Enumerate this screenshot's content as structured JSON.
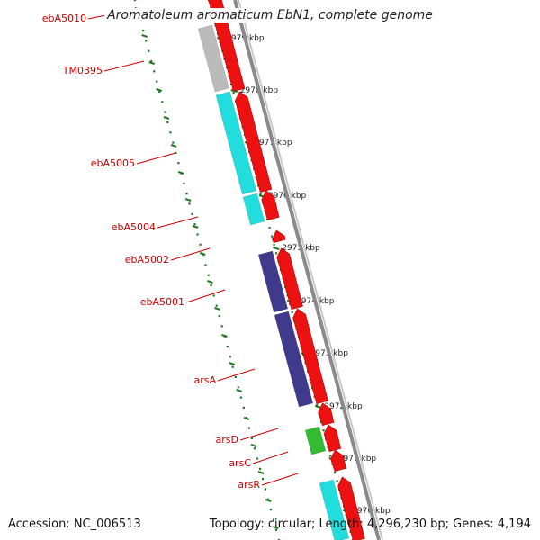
{
  "title": "Aromatoleum aromaticum EbN1, complete genome",
  "footer": {
    "accession": "Accession: NC_006513",
    "summary": "Topology: circular; Length: 4,296,230 bp; Genes: 4,194"
  },
  "scale_ticks": [
    "2979 kbp",
    "2978 kbp",
    "2977 kbp",
    "2976 kbp",
    "2975 kbp",
    "2974 kbp",
    "2973 kbp",
    "2972 kbp",
    "2971 kbp",
    "2970 kbp"
  ],
  "gene_labels": [
    "ebA5010",
    "TM0395",
    "ebA5005",
    "ebA5004",
    "ebA5002",
    "ebA5001",
    "arsA",
    "arsD",
    "arsC",
    "arsR"
  ],
  "colors": {
    "cds": "#ee1111",
    "label": "#cc0000",
    "backbone": "#888888",
    "tick": "#1f7a1f",
    "feature_grey": "#bbbbbb",
    "feature_cyan": "#22dddd",
    "feature_purple": "#3f3a8c",
    "feature_green": "#33bb33"
  }
}
